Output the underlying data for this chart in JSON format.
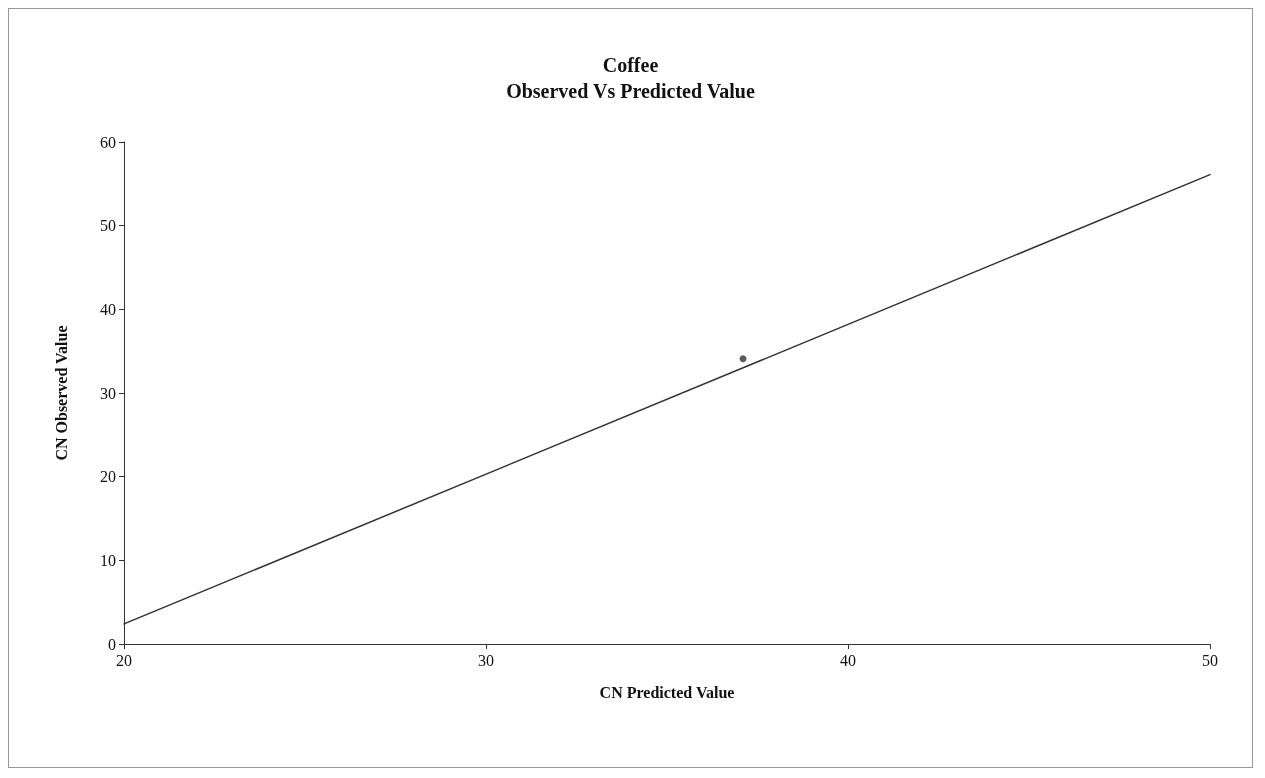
{
  "chart_data": {
    "type": "line",
    "title": "Coffee\nObserved Vs Predicted Value",
    "xlabel": "CN Predicted Value",
    "ylabel": "CN Observed Value",
    "xlim": [
      20,
      50
    ],
    "xticks": [
      20,
      30,
      40,
      50
    ],
    "ylim": [
      0,
      60
    ],
    "yticks": [
      0,
      10,
      20,
      30,
      40,
      50,
      60
    ],
    "grid": false,
    "marker": "none",
    "line_style": "solid",
    "series": [
      {
        "color": "#333333",
        "x": [
          20,
          50
        ],
        "values": [
          2.4,
          56.1
        ]
      },
      {
        "type": "scatter",
        "color": "#333333",
        "marker": "circle",
        "x": [
          37.1
        ],
        "values": [
          34.1
        ]
      }
    ]
  }
}
